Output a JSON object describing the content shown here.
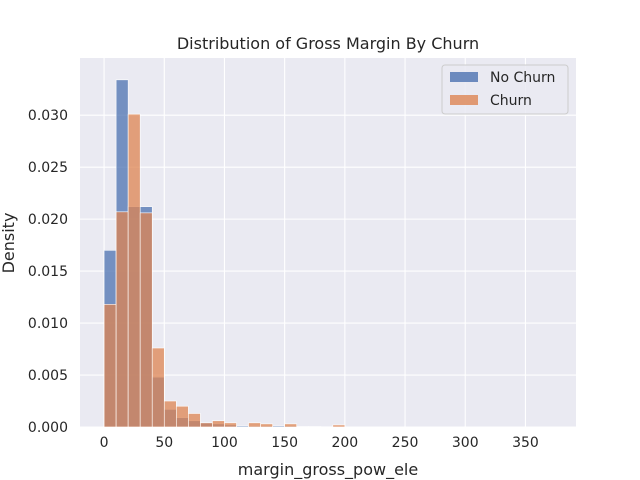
{
  "chart_data": {
    "type": "bar",
    "title": "Distribution of Gross Margin By Churn",
    "xlabel": "margin_gross_pow_ele",
    "ylabel": "Density",
    "xlim": [
      -20,
      392
    ],
    "ylim": [
      0,
      0.0355
    ],
    "xticks": [
      "0",
      "50",
      "100",
      "150",
      "200",
      "250",
      "300",
      "350"
    ],
    "yticks": [
      "0.000",
      "0.005",
      "0.010",
      "0.015",
      "0.020",
      "0.025",
      "0.030"
    ],
    "grid": true,
    "legend_position": "top-right",
    "bin_edges": [
      0,
      10,
      20,
      30,
      40,
      50,
      60,
      70,
      80,
      90,
      100,
      110,
      120,
      130,
      140,
      150,
      160,
      170,
      180,
      190,
      200,
      210
    ],
    "series": [
      {
        "name": "No Churn",
        "color": "#4c72b0",
        "values": [
          0.017,
          0.0334,
          0.0212,
          0.0212,
          0.0048,
          0.0017,
          0.0009,
          0.0006,
          0.0004,
          0.0003,
          0.0002,
          0.0001,
          0.0001,
          0.0001,
          0.0001,
          0.0001,
          5e-05,
          5e-05,
          3e-05,
          3e-05,
          2e-05
        ]
      },
      {
        "name": "Churn",
        "color": "#dd8452",
        "values": [
          0.0118,
          0.0207,
          0.0301,
          0.0206,
          0.0076,
          0.0025,
          0.002,
          0.0013,
          0.0004,
          0.0006,
          0.0004,
          0.0,
          0.0004,
          0.0003,
          0.0,
          0.0003,
          0.0,
          0.0,
          0.0,
          0.0002,
          0.0
        ]
      }
    ]
  }
}
